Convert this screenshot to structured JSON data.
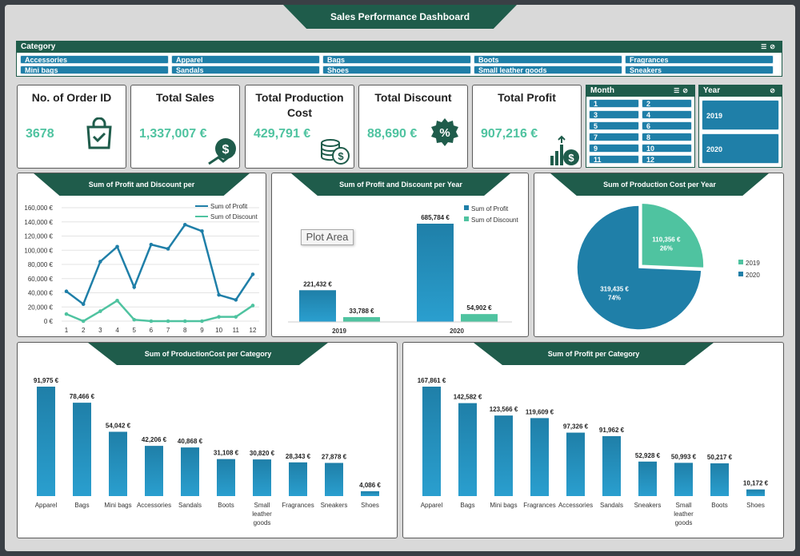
{
  "dashboard_title": "Sales Performance Dashboard",
  "category_slicer": {
    "title": "Category",
    "items": [
      "Accessories",
      "Apparel",
      "Bags",
      "Boots",
      "Fragrances",
      "Mini bags",
      "Sandals",
      "Shoes",
      "Small leather goods",
      "Sneakers"
    ]
  },
  "month_slicer": {
    "title": "Month",
    "items": [
      "1",
      "2",
      "3",
      "4",
      "5",
      "6",
      "7",
      "8",
      "9",
      "10",
      "11",
      "12"
    ]
  },
  "year_slicer": {
    "title": "Year",
    "items": [
      "2019",
      "2020"
    ]
  },
  "kpis": [
    {
      "title": "No. of Order ID",
      "value": "3678",
      "icon": "shopping-bag-icon"
    },
    {
      "title": "Total Sales",
      "value": "1,337,007 €",
      "icon": "money-growth-icon"
    },
    {
      "title": "Total Production Cost",
      "value": "429,791 €",
      "icon": "coin-stack-icon"
    },
    {
      "title": "Total Discount",
      "value": "88,690 €",
      "icon": "discount-badge-icon"
    },
    {
      "title": "Total Profit",
      "value": "907,216 €",
      "icon": "profit-chart-icon"
    }
  ],
  "tooltip": "Plot Area",
  "colors": {
    "dark_green": "#1f5c4b",
    "blue": "#1f7fa8",
    "teal": "#4fc3a0"
  },
  "chart_data": [
    {
      "type": "line",
      "title": "Sum of Profit and Discount per",
      "x": [
        1,
        2,
        3,
        4,
        5,
        6,
        7,
        8,
        9,
        10,
        11,
        12
      ],
      "series": [
        {
          "name": "Sum of Profit",
          "values": [
            42000,
            24000,
            84000,
            105000,
            48000,
            108000,
            102000,
            136000,
            127000,
            37000,
            30000,
            66000
          ]
        },
        {
          "name": "Sum of Discount",
          "values": [
            10000,
            0,
            14000,
            29000,
            2000,
            0,
            0,
            0,
            0,
            6000,
            6000,
            22000
          ]
        }
      ],
      "ylim": [
        0,
        160000
      ],
      "yticks": [
        "0 €",
        "20,000 €",
        "40,000 €",
        "60,000 €",
        "80,000 €",
        "100,000 €",
        "120,000 €",
        "140,000 €",
        "160,000 €"
      ],
      "legend": "top-right"
    },
    {
      "type": "bar",
      "title": "Sum of Profit and Discount per Year",
      "categories": [
        "2019",
        "2020"
      ],
      "series": [
        {
          "name": "Sum of Profit",
          "values": [
            221432,
            685784
          ],
          "labels": [
            "221,432 €",
            "685,784 €"
          ]
        },
        {
          "name": "Sum of Discount",
          "values": [
            33788,
            54902
          ],
          "labels": [
            "33,788 €",
            "54,902 €"
          ]
        }
      ],
      "legend": "top-right"
    },
    {
      "type": "pie",
      "title": "Sum of Production Cost per Year",
      "categories": [
        "2019",
        "2020"
      ],
      "values": [
        110356,
        319435
      ],
      "labels": [
        "110,356 €",
        "319,435 €"
      ],
      "percents": [
        "26%",
        "74%"
      ],
      "legend": "right"
    },
    {
      "type": "bar",
      "title": "Sum of ProductionCost per Category",
      "categories": [
        "Apparel",
        "Bags",
        "Mini bags",
        "Accessories",
        "Sandals",
        "Boots",
        "Small leather goods",
        "Fragrances",
        "Sneakers",
        "Shoes"
      ],
      "values": [
        91975,
        78466,
        54042,
        42206,
        40868,
        31108,
        30820,
        28343,
        27878,
        4086
      ],
      "labels": [
        "91,975 €",
        "78,466 €",
        "54,042 €",
        "42,206 €",
        "40,868 €",
        "31,108 €",
        "30,820 €",
        "28,343 €",
        "27,878 €",
        "4,086 €"
      ]
    },
    {
      "type": "bar",
      "title": "Sum of Profit per Category",
      "categories": [
        "Apparel",
        "Bags",
        "Mini bags",
        "Fragrances",
        "Accessories",
        "Sandals",
        "Sneakers",
        "Small leather goods",
        "Boots",
        "Shoes"
      ],
      "values": [
        167861,
        142582,
        123566,
        119609,
        97326,
        91962,
        52928,
        50993,
        50217,
        10172
      ],
      "labels": [
        "167,861 €",
        "142,582 €",
        "123,566 €",
        "119,609 €",
        "97,326 €",
        "91,962 €",
        "52,928 €",
        "50,993 €",
        "50,217 €",
        "10,172 €"
      ]
    }
  ]
}
